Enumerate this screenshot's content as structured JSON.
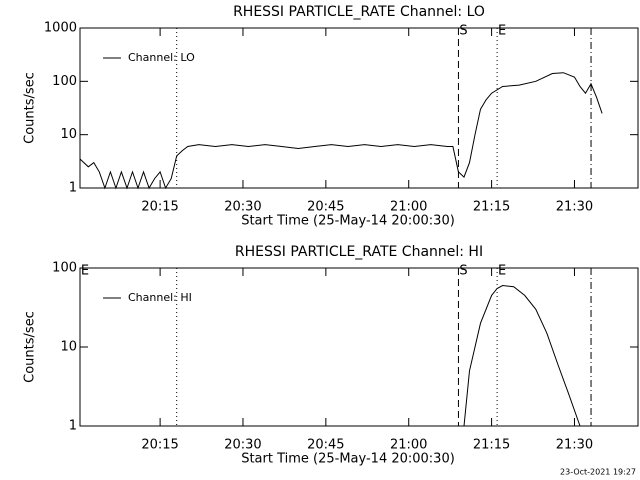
{
  "chart_data": [
    {
      "type": "line",
      "title": "RHESSI PARTICLE_RATE Channel: LO",
      "xlabel": "Start Time (25-May-14 20:00:30)",
      "ylabel": "Counts/sec",
      "x": [
        "20:00:30",
        "20:02",
        "20:03",
        "20:04",
        "20:05",
        "20:06",
        "20:07",
        "20:08",
        "20:09",
        "20:10",
        "20:11",
        "20:12",
        "20:13",
        "20:14",
        "20:15",
        "20:16",
        "20:17",
        "20:18",
        "20:19",
        "20:20",
        "20:22",
        "20:25",
        "20:28",
        "20:31",
        "20:34",
        "20:37",
        "20:40",
        "20:43",
        "20:46",
        "20:49",
        "20:52",
        "20:55",
        "20:58",
        "21:01",
        "21:04",
        "21:07",
        "21:08",
        "21:09",
        "21:10",
        "21:11",
        "21:12",
        "21:13",
        "21:14",
        "21:15",
        "21:17",
        "21:20",
        "21:23",
        "21:26",
        "21:28",
        "21:30",
        "21:31",
        "21:32",
        "21:33",
        "21:34",
        "21:35"
      ],
      "series": [
        {
          "name": "Channel: LO",
          "color": "#000000",
          "values": [
            3.5,
            2.5,
            3,
            2,
            1,
            2,
            1,
            2,
            1,
            2,
            1,
            2,
            1,
            1.5,
            2,
            1,
            1.5,
            4,
            5,
            6,
            6.5,
            6,
            6.5,
            6,
            6.5,
            6,
            5.5,
            6,
            6.5,
            6,
            6.5,
            6,
            6.5,
            6,
            6.5,
            6,
            6,
            2,
            1.6,
            3,
            10,
            30,
            45,
            60,
            80,
            85,
            100,
            140,
            145,
            120,
            80,
            60,
            90,
            50,
            25
          ]
        }
      ],
      "xlim": [
        "20:00:30",
        "21:41:30"
      ],
      "xticks": [
        "20:15",
        "20:30",
        "20:45",
        "21:00",
        "21:15",
        "21:30"
      ],
      "ylim": [
        1,
        1000
      ],
      "yticks": [
        1,
        10,
        100,
        1000
      ],
      "log_y": true,
      "markers": [
        {
          "x": "20:18",
          "style": "dotted"
        },
        {
          "x": "21:09",
          "style": "dashed",
          "label": "S"
        },
        {
          "x": "21:16",
          "style": "dotted",
          "label": "E"
        },
        {
          "x": "21:33",
          "style": "dashdot"
        }
      ]
    },
    {
      "type": "line",
      "title": "RHESSI PARTICLE_RATE Channel: HI",
      "xlabel": "Start Time (25-May-14 20:00:30)",
      "ylabel": "Counts/sec",
      "x": [
        "21:10",
        "21:11",
        "21:13",
        "21:15",
        "21:16",
        "21:17",
        "21:19",
        "21:21",
        "21:23",
        "21:25",
        "21:27",
        "21:29",
        "21:31"
      ],
      "series": [
        {
          "name": "Channel: HI",
          "color": "#000000",
          "values": [
            1,
            5,
            20,
            45,
            55,
            60,
            58,
            45,
            30,
            15,
            6,
            2.5,
            1
          ]
        }
      ],
      "xlim": [
        "20:00:30",
        "21:41:30"
      ],
      "xticks": [
        "20:15",
        "20:30",
        "20:45",
        "21:00",
        "21:15",
        "21:30"
      ],
      "ylim": [
        1,
        100
      ],
      "yticks": [
        1,
        10,
        100
      ],
      "log_y": true,
      "corner_label": "E",
      "markers": [
        {
          "x": "20:18",
          "style": "dotted"
        },
        {
          "x": "21:09",
          "style": "dashed",
          "label": "S"
        },
        {
          "x": "21:16",
          "style": "dotted",
          "label": "E"
        },
        {
          "x": "21:33",
          "style": "dashdot"
        }
      ]
    }
  ],
  "footer": "23-Oct-2021 19:27"
}
